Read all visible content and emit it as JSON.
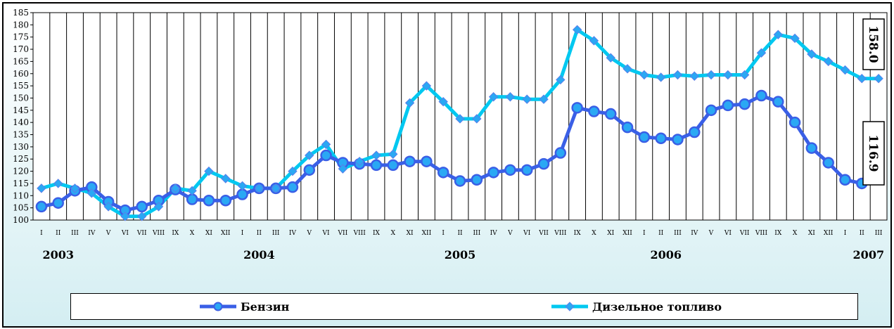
{
  "chart_data": {
    "type": "line",
    "ylim": [
      100,
      185
    ],
    "yticks": [
      100,
      105,
      110,
      115,
      120,
      125,
      130,
      135,
      140,
      145,
      150,
      155,
      160,
      165,
      170,
      175,
      180,
      185
    ],
    "months": [
      "I",
      "II",
      "III",
      "IV",
      "V",
      "VI",
      "VII",
      "VIII",
      "IX",
      "X",
      "XI",
      "XII",
      "I",
      "II",
      "III",
      "IV",
      "V",
      "VI",
      "VII",
      "VIII",
      "IX",
      "X",
      "XI",
      "XII",
      "I",
      "II",
      "III",
      "IV",
      "V",
      "VI",
      "VII",
      "VIII",
      "IX",
      "X",
      "XI",
      "XII",
      "I",
      "II",
      "III",
      "IV",
      "V",
      "VI",
      "VII",
      "VIII",
      "IX",
      "X",
      "XI",
      "XII",
      "I",
      "II",
      "III"
    ],
    "years": [
      {
        "label": "2003",
        "index": 1
      },
      {
        "label": "2004",
        "index": 13
      },
      {
        "label": "2005",
        "index": 25
      },
      {
        "label": "2006",
        "index": 37.3
      },
      {
        "label": "2007",
        "index": 49.4
      }
    ],
    "series": [
      {
        "name": "Бензин",
        "color": "#3a5fe6",
        "marker": "circle",
        "values": [
          105.5,
          107,
          112,
          113.5,
          107.5,
          104,
          105.5,
          108,
          112.5,
          108.5,
          108,
          108,
          110.5,
          113,
          113,
          113.5,
          120.5,
          126.5,
          123.5,
          123,
          122.5,
          122.5,
          124,
          124,
          119.5,
          116,
          116.5,
          119.5,
          120.5,
          120.5,
          123,
          127.5,
          146,
          144.5,
          143.5,
          138,
          134,
          133.5,
          133,
          136,
          145,
          147,
          147.5,
          151,
          148.5,
          140,
          129.5,
          123.5,
          116.5,
          115,
          116.9
        ],
        "end_label": "116.9"
      },
      {
        "name": "Дизельное топливо",
        "color": "#00c8f0",
        "marker": "diamond",
        "values": [
          113,
          115,
          113,
          111,
          105.5,
          101.5,
          101.5,
          105.5,
          113,
          112,
          120,
          117,
          114,
          113,
          113,
          120,
          126.5,
          131,
          121,
          124,
          126.5,
          127,
          148,
          155,
          148.5,
          141.5,
          141.5,
          150.5,
          150.5,
          149.5,
          149.5,
          157.5,
          178,
          173.5,
          166.5,
          162,
          159.5,
          158.5,
          159.5,
          159,
          159.5,
          159.5,
          159.5,
          168.5,
          176,
          174.5,
          168,
          165,
          161.5,
          158,
          158
        ],
        "end_label": "158.0"
      }
    ]
  }
}
